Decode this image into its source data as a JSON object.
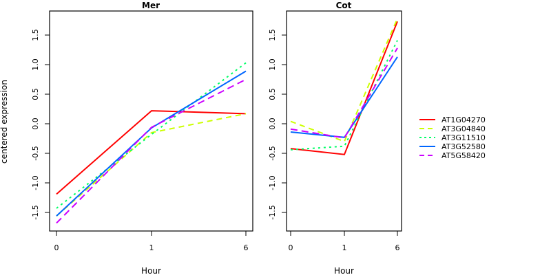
{
  "chart_data": [
    {
      "type": "line",
      "title": "Mer",
      "xlabel": "Hour",
      "ylabel": "centered expression",
      "categories": [
        "0",
        "1",
        "6"
      ],
      "ylim": [
        -1.8,
        1.9
      ],
      "yticks": [
        "-1.5",
        "-1.0",
        "-0.5",
        "0.0",
        "0.5",
        "1.0",
        "1.5"
      ],
      "series": [
        {
          "name": "AT1G04270",
          "values": [
            -1.19,
            0.22,
            0.17
          ]
        },
        {
          "name": "AT3G04840",
          "values": [
            -1.56,
            -0.15,
            0.17
          ]
        },
        {
          "name": "AT3G11510",
          "values": [
            -1.43,
            -0.18,
            1.03
          ]
        },
        {
          "name": "AT3G52580",
          "values": [
            -1.56,
            -0.07,
            0.89
          ]
        },
        {
          "name": "AT5G58420",
          "values": [
            -1.68,
            -0.06,
            0.75
          ]
        }
      ]
    },
    {
      "type": "line",
      "title": "Cot",
      "xlabel": "Hour",
      "ylabel": "",
      "categories": [
        "0",
        "1",
        "6"
      ],
      "ylim": [
        -1.8,
        1.9
      ],
      "yticks": [
        "-1.5",
        "-1.0",
        "-0.5",
        "0.0",
        "0.5",
        "1.0",
        "1.5"
      ],
      "series": [
        {
          "name": "AT1G04270",
          "values": [
            -0.42,
            -0.52,
            1.73
          ]
        },
        {
          "name": "AT3G04840",
          "values": [
            0.04,
            -0.3,
            1.78
          ]
        },
        {
          "name": "AT3G11510",
          "values": [
            -0.44,
            -0.38,
            1.41
          ]
        },
        {
          "name": "AT3G52580",
          "values": [
            -0.14,
            -0.23,
            1.13
          ]
        },
        {
          "name": "AT5G58420",
          "values": [
            -0.09,
            -0.24,
            1.28
          ]
        }
      ]
    }
  ],
  "legend": {
    "position": "right",
    "entries": [
      {
        "name": "AT1G04270",
        "color": "#ff0000",
        "style": "solid"
      },
      {
        "name": "AT3G04840",
        "color": "#ccff00",
        "style": "dashed"
      },
      {
        "name": "AT3G11510",
        "color": "#00ff66",
        "style": "dotted"
      },
      {
        "name": "AT3G52580",
        "color": "#0066ff",
        "style": "solid"
      },
      {
        "name": "AT5G58420",
        "color": "#cc00ff",
        "style": "longdash"
      }
    ]
  }
}
